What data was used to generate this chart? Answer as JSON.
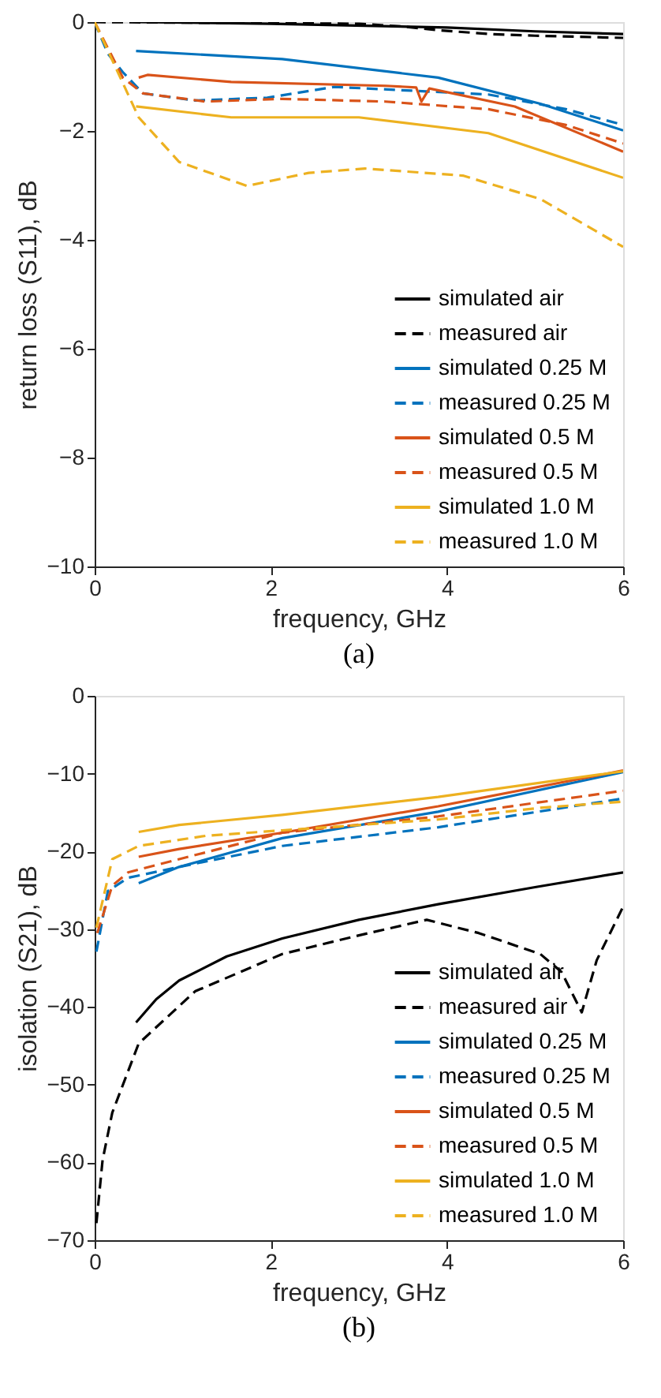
{
  "chart_data": [
    {
      "type": "line",
      "xlabel": "frequency, GHz",
      "ylabel": "return loss (S11), dB",
      "annotations": [
        "(a)"
      ],
      "xlim": [
        0,
        6
      ],
      "ylim": [
        -10,
        0
      ],
      "xticks": [
        0,
        2,
        4,
        6
      ],
      "yticks": [
        -10,
        -8,
        -6,
        -4,
        -2,
        0
      ],
      "grid": false,
      "legend": "bottom right",
      "marker": "none",
      "series": [
        {
          "name": "simulated air",
          "color": "#000000",
          "line_style": "solid",
          "x": [
            0.5,
            2,
            4,
            5,
            6
          ],
          "values": [
            0,
            -0.03,
            -0.1,
            -0.17,
            -0.22
          ]
        },
        {
          "name": "measured air",
          "color": "#000000",
          "line_style": "dashed",
          "x": [
            0,
            1,
            2,
            3,
            3.5,
            3.9,
            4.5,
            5,
            5.5,
            6
          ],
          "values": [
            0,
            -0.01,
            -0.02,
            -0.03,
            -0.08,
            -0.15,
            -0.22,
            -0.25,
            -0.27,
            -0.29
          ]
        },
        {
          "name": "simulated 0.25 M",
          "color": "#0072bd",
          "line_style": "solid",
          "x": [
            0.47,
            2.13,
            3.9,
            5.06,
            6
          ],
          "values": [
            -0.53,
            -0.68,
            -1.02,
            -1.5,
            -1.99
          ]
        },
        {
          "name": "measured 0.25 M",
          "color": "#0072bd",
          "line_style": "dashed",
          "x": [
            0,
            0.15,
            0.32,
            0.55,
            1.14,
            1.96,
            2.72,
            3.6,
            4.47,
            5.35,
            6
          ],
          "values": [
            0,
            -0.58,
            -0.92,
            -1.31,
            -1.44,
            -1.39,
            -1.19,
            -1.26,
            -1.33,
            -1.6,
            -1.89
          ]
        },
        {
          "name": "simulated 0.5 M",
          "color": "#d95319",
          "line_style": "solid",
          "x": [
            0.5,
            0.6,
            1.55,
            3.3,
            3.65,
            3.71,
            3.8,
            4.77,
            6
          ],
          "values": [
            -1.02,
            -0.97,
            -1.1,
            -1.17,
            -1.2,
            -1.46,
            -1.22,
            -1.55,
            -2.38
          ]
        },
        {
          "name": "measured 0.5 M",
          "color": "#d95319",
          "line_style": "dashed",
          "x": [
            0,
            0.32,
            0.55,
            1.26,
            2.13,
            3.3,
            4.47,
            5.35,
            6
          ],
          "values": [
            0,
            -1.02,
            -1.31,
            -1.46,
            -1.41,
            -1.46,
            -1.6,
            -1.89,
            -2.23
          ]
        },
        {
          "name": "simulated 1.0 M",
          "color": "#edb120",
          "line_style": "solid",
          "x": [
            0.47,
            1.55,
            3.0,
            4.47,
            6
          ],
          "values": [
            -1.55,
            -1.75,
            -1.75,
            -2.04,
            -2.86
          ]
        },
        {
          "name": "measured 1.0 M",
          "color": "#edb120",
          "line_style": "dashed",
          "x": [
            0,
            0.5,
            0.96,
            1.73,
            2.43,
            3.07,
            4.18,
            5.06,
            6
          ],
          "values": [
            0,
            -1.75,
            -2.57,
            -3.01,
            -2.77,
            -2.69,
            -2.82,
            -3.25,
            -4.13
          ]
        }
      ]
    },
    {
      "type": "line",
      "xlabel": "frequency, GHz",
      "ylabel": "isolation (S21), dB",
      "annotations": [
        "(b)"
      ],
      "xlim": [
        0,
        6
      ],
      "ylim": [
        -70,
        0
      ],
      "xticks": [
        0,
        2,
        4,
        6
      ],
      "yticks": [
        -70,
        -60,
        -50,
        -40,
        -30,
        -20,
        -10,
        0
      ],
      "grid": false,
      "legend": "bottom right",
      "marker": "none",
      "series": [
        {
          "name": "simulated air",
          "color": "#000000",
          "line_style": "solid",
          "x": [
            0.47,
            0.7,
            0.96,
            1.5,
            2.13,
            3.0,
            3.9,
            5.0,
            6
          ],
          "values": [
            -42,
            -39,
            -36.6,
            -33.5,
            -31.2,
            -28.8,
            -26.8,
            -24.6,
            -22.7
          ]
        },
        {
          "name": "measured air",
          "color": "#000000",
          "line_style": "dashed",
          "x": [
            0.02,
            0.09,
            0.2,
            0.5,
            1.14,
            2.13,
            3.0,
            3.77,
            4.36,
            5.06,
            5.3,
            5.53,
            5.7,
            6
          ],
          "values": [
            -67.8,
            -59.7,
            -53.6,
            -44.7,
            -38,
            -33.2,
            -30.8,
            -28.8,
            -30.5,
            -33.2,
            -35.5,
            -40.7,
            -34,
            -27.1
          ]
        },
        {
          "name": "simulated 0.25 M",
          "color": "#0072bd",
          "line_style": "solid",
          "x": [
            0.5,
            0.96,
            2.13,
            3.9,
            6
          ],
          "values": [
            -24.1,
            -22,
            -18.3,
            -14.9,
            -9.8
          ]
        },
        {
          "name": "measured 0.25 M",
          "color": "#0072bd",
          "line_style": "dashed",
          "x": [
            0.02,
            0.15,
            0.38,
            0.96,
            2.13,
            3.9,
            6
          ],
          "values": [
            -32.9,
            -25.1,
            -23.4,
            -22,
            -19.3,
            -16.9,
            -13.2
          ]
        },
        {
          "name": "simulated 0.5 M",
          "color": "#d95319",
          "line_style": "solid",
          "x": [
            0.5,
            0.96,
            2.13,
            3.9,
            6
          ],
          "values": [
            -20.7,
            -19.7,
            -17.6,
            -14.2,
            -9.6
          ]
        },
        {
          "name": "measured 0.5 M",
          "color": "#d95319",
          "line_style": "dashed",
          "x": [
            0.03,
            0.2,
            0.38,
            0.96,
            2.13,
            3.9,
            6
          ],
          "values": [
            -30.5,
            -24.4,
            -22.7,
            -21,
            -17.6,
            -15.5,
            -12.2
          ]
        },
        {
          "name": "simulated 1.0 M",
          "color": "#edb120",
          "line_style": "solid",
          "x": [
            0.5,
            0.96,
            2.13,
            3.9,
            6
          ],
          "values": [
            -17.5,
            -16.6,
            -15.3,
            -13,
            -9.7
          ]
        },
        {
          "name": "measured 1.0 M",
          "color": "#edb120",
          "line_style": "dashed",
          "x": [
            0.02,
            0.2,
            0.5,
            1.26,
            2.13,
            3.9,
            5.06,
            6
          ],
          "values": [
            -29.8,
            -21,
            -19.3,
            -18,
            -17.3,
            -15.9,
            -14.4,
            -13.6
          ]
        }
      ]
    }
  ]
}
